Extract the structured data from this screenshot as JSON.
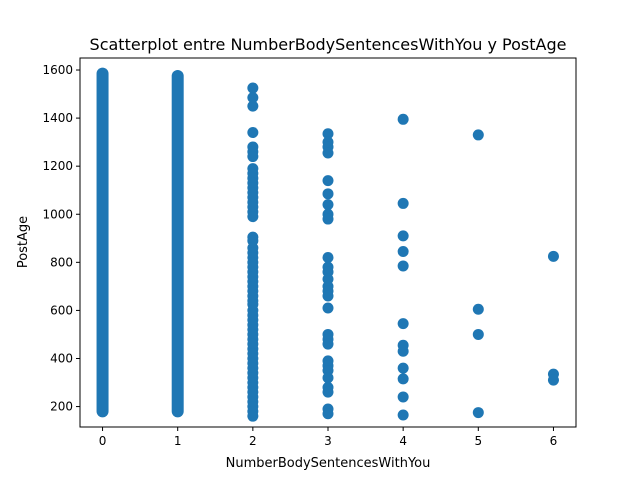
{
  "chart_data": {
    "type": "scatter",
    "title": "Scatterplot entre NumberBodySentencesWithYou y PostAge",
    "xlabel": "NumberBodySentencesWithYou",
    "ylabel": "PostAge",
    "xlim": [
      -0.3,
      6.3
    ],
    "ylim": [
      115,
      1650
    ],
    "x_ticks": [
      0,
      1,
      2,
      3,
      4,
      5,
      6
    ],
    "y_ticks": [
      200,
      400,
      600,
      800,
      1000,
      1200,
      1400,
      1600
    ],
    "grid": false,
    "legend": "none",
    "marker_color": "#1f77b4",
    "dense_columns": [
      {
        "x": 0,
        "y_min": 155,
        "y_max": 1610
      },
      {
        "x": 1,
        "y_min": 155,
        "y_max": 1600
      }
    ],
    "points": [
      {
        "x": 2,
        "y": 1525
      },
      {
        "x": 2,
        "y": 1485
      },
      {
        "x": 2,
        "y": 1450
      },
      {
        "x": 2,
        "y": 1340
      },
      {
        "x": 2,
        "y": 1280
      },
      {
        "x": 2,
        "y": 1260
      },
      {
        "x": 2,
        "y": 1240
      },
      {
        "x": 2,
        "y": 1190
      },
      {
        "x": 2,
        "y": 1170
      },
      {
        "x": 2,
        "y": 1150
      },
      {
        "x": 2,
        "y": 1130
      },
      {
        "x": 2,
        "y": 1110
      },
      {
        "x": 2,
        "y": 1090
      },
      {
        "x": 2,
        "y": 1070
      },
      {
        "x": 2,
        "y": 1050
      },
      {
        "x": 2,
        "y": 1030
      },
      {
        "x": 2,
        "y": 1010
      },
      {
        "x": 2,
        "y": 990
      },
      {
        "x": 2,
        "y": 905
      },
      {
        "x": 2,
        "y": 890
      },
      {
        "x": 2,
        "y": 860
      },
      {
        "x": 2,
        "y": 840
      },
      {
        "x": 2,
        "y": 820
      },
      {
        "x": 2,
        "y": 800
      },
      {
        "x": 2,
        "y": 780
      },
      {
        "x": 2,
        "y": 760
      },
      {
        "x": 2,
        "y": 740
      },
      {
        "x": 2,
        "y": 720
      },
      {
        "x": 2,
        "y": 700
      },
      {
        "x": 2,
        "y": 680
      },
      {
        "x": 2,
        "y": 660
      },
      {
        "x": 2,
        "y": 640
      },
      {
        "x": 2,
        "y": 625
      },
      {
        "x": 2,
        "y": 600
      },
      {
        "x": 2,
        "y": 580
      },
      {
        "x": 2,
        "y": 560
      },
      {
        "x": 2,
        "y": 540
      },
      {
        "x": 2,
        "y": 520
      },
      {
        "x": 2,
        "y": 500
      },
      {
        "x": 2,
        "y": 480
      },
      {
        "x": 2,
        "y": 460
      },
      {
        "x": 2,
        "y": 440
      },
      {
        "x": 2,
        "y": 420
      },
      {
        "x": 2,
        "y": 400
      },
      {
        "x": 2,
        "y": 380
      },
      {
        "x": 2,
        "y": 360
      },
      {
        "x": 2,
        "y": 340
      },
      {
        "x": 2,
        "y": 320
      },
      {
        "x": 2,
        "y": 300
      },
      {
        "x": 2,
        "y": 280
      },
      {
        "x": 2,
        "y": 260
      },
      {
        "x": 2,
        "y": 240
      },
      {
        "x": 2,
        "y": 220
      },
      {
        "x": 2,
        "y": 200
      },
      {
        "x": 2,
        "y": 180
      },
      {
        "x": 2,
        "y": 160
      },
      {
        "x": 3,
        "y": 1335
      },
      {
        "x": 3,
        "y": 1300
      },
      {
        "x": 3,
        "y": 1280
      },
      {
        "x": 3,
        "y": 1255
      },
      {
        "x": 3,
        "y": 1140
      },
      {
        "x": 3,
        "y": 1085
      },
      {
        "x": 3,
        "y": 1040
      },
      {
        "x": 3,
        "y": 1000
      },
      {
        "x": 3,
        "y": 980
      },
      {
        "x": 3,
        "y": 820
      },
      {
        "x": 3,
        "y": 780
      },
      {
        "x": 3,
        "y": 760
      },
      {
        "x": 3,
        "y": 730
      },
      {
        "x": 3,
        "y": 700
      },
      {
        "x": 3,
        "y": 680
      },
      {
        "x": 3,
        "y": 660
      },
      {
        "x": 3,
        "y": 610
      },
      {
        "x": 3,
        "y": 500
      },
      {
        "x": 3,
        "y": 480
      },
      {
        "x": 3,
        "y": 460
      },
      {
        "x": 3,
        "y": 390
      },
      {
        "x": 3,
        "y": 370
      },
      {
        "x": 3,
        "y": 350
      },
      {
        "x": 3,
        "y": 320
      },
      {
        "x": 3,
        "y": 280
      },
      {
        "x": 3,
        "y": 260
      },
      {
        "x": 3,
        "y": 190
      },
      {
        "x": 3,
        "y": 170
      },
      {
        "x": 4,
        "y": 1395
      },
      {
        "x": 4,
        "y": 1045
      },
      {
        "x": 4,
        "y": 910
      },
      {
        "x": 4,
        "y": 845
      },
      {
        "x": 4,
        "y": 785
      },
      {
        "x": 4,
        "y": 545
      },
      {
        "x": 4,
        "y": 455
      },
      {
        "x": 4,
        "y": 430
      },
      {
        "x": 4,
        "y": 360
      },
      {
        "x": 4,
        "y": 315
      },
      {
        "x": 4,
        "y": 240
      },
      {
        "x": 4,
        "y": 165
      },
      {
        "x": 5,
        "y": 1330
      },
      {
        "x": 5,
        "y": 605
      },
      {
        "x": 5,
        "y": 500
      },
      {
        "x": 5,
        "y": 175
      },
      {
        "x": 6,
        "y": 825
      },
      {
        "x": 6,
        "y": 335
      },
      {
        "x": 6,
        "y": 310
      }
    ]
  }
}
